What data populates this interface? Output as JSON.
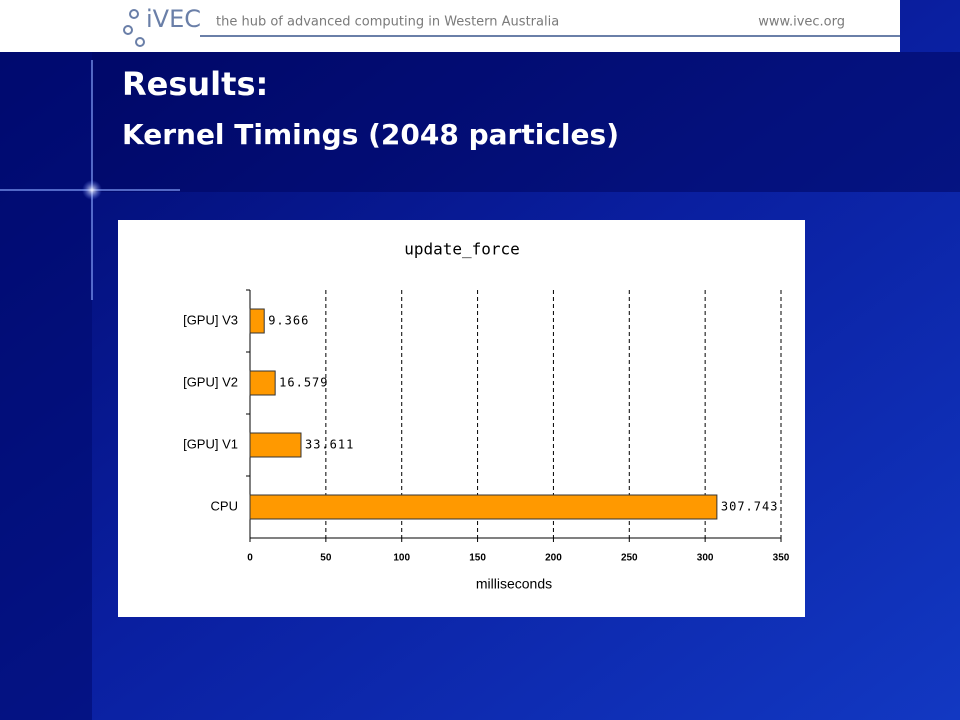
{
  "banner": {
    "logo": "iVEC",
    "tagline": "the hub of advanced computing in Western Australia",
    "url": "www.ivec.org"
  },
  "slide": {
    "title": "Results:",
    "subtitle": "Kernel Timings (2048 particles)"
  },
  "chart_data": {
    "type": "hbar",
    "title": "update_force",
    "categories": [
      "[GPU] V3",
      "[GPU] V2",
      "[GPU] V1",
      "CPU"
    ],
    "values": [
      9.366,
      16.579,
      33.611,
      307.743
    ],
    "color": "#ff9900",
    "xlabel": "milliseconds",
    "xlim": [
      0,
      350
    ],
    "xticks": [
      0,
      50,
      100,
      150,
      200,
      250,
      300,
      350
    ],
    "grid": true
  }
}
